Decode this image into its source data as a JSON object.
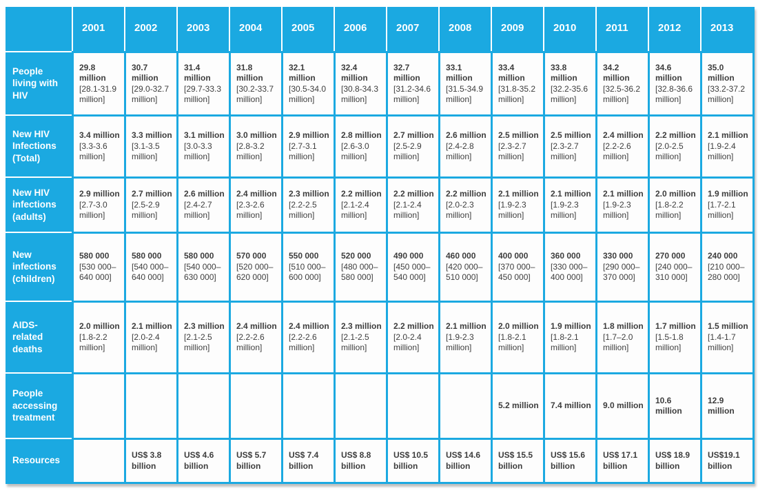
{
  "colors": {
    "accent": "#1ba9e1",
    "header_text": "#ffffff",
    "body_text": "#3d3d3d",
    "cell_bg": "#fdfdfd"
  },
  "chart_data": {
    "type": "table",
    "title": "",
    "columns": [
      "2001",
      "2002",
      "2003",
      "2004",
      "2005",
      "2006",
      "2007",
      "2008",
      "2009",
      "2010",
      "2011",
      "2012",
      "2013"
    ],
    "rows": [
      {
        "label": "People living with HIV",
        "cells": [
          {
            "value": "29.8 million",
            "range": "[28.1-31.9 million]"
          },
          {
            "value": "30.7 million",
            "range": "[29.0-32.7 million]"
          },
          {
            "value": "31.4 million",
            "range": "[29.7-33.3 million]"
          },
          {
            "value": "31.8 million",
            "range": "[30.2-33.7 million]"
          },
          {
            "value": "32.1 million",
            "range": "[30.5-34.0 million]"
          },
          {
            "value": "32.4 million",
            "range": "[30.8-34.3 million]"
          },
          {
            "value": "32.7 million",
            "range": "[31.2-34.6 million]"
          },
          {
            "value": "33.1 million",
            "range": "[31.5-34.9 million]"
          },
          {
            "value": "33.4 million",
            "range": "[31.8-35.2 million]"
          },
          {
            "value": "33.8 million",
            "range": "[32.2-35.6 million]"
          },
          {
            "value": "34.2 million",
            "range": "[32.5-36.2 million]"
          },
          {
            "value": "34.6 million",
            "range": "[32.8-36.6 million]"
          },
          {
            "value": "35.0 million",
            "range": "[33.2-37.2 million]"
          }
        ]
      },
      {
        "label": "New HIV Infections (Total)",
        "cells": [
          {
            "value": "3.4 million",
            "range": "[3.3-3.6 million]"
          },
          {
            "value": "3.3 million",
            "range": "[3.1-3.5 million]"
          },
          {
            "value": "3.1 million",
            "range": "[3.0-3.3 million]"
          },
          {
            "value": "3.0 million",
            "range": "[2.8-3.2 million]"
          },
          {
            "value": "2.9 million",
            "range": "[2.7-3.1 million]"
          },
          {
            "value": "2.8 million",
            "range": "[2.6-3.0 million]"
          },
          {
            "value": "2.7 million",
            "range": "[2.5-2.9 million]"
          },
          {
            "value": "2.6 million",
            "range": "[2.4-2.8 million]"
          },
          {
            "value": "2.5 million",
            "range": "[2.3-2.7 million]"
          },
          {
            "value": "2.5 million",
            "range": "[2.3-2.7 million]"
          },
          {
            "value": "2.4 million",
            "range": "[2.2-2.6 million]"
          },
          {
            "value": "2.2 million",
            "range": "[2.0-2.5 million]"
          },
          {
            "value": "2.1 million",
            "range": "[1.9-2.4 million]"
          }
        ]
      },
      {
        "label": "New HIV infections (adults)",
        "cells": [
          {
            "value": "2.9 million",
            "range": "[2.7-3.0 million]"
          },
          {
            "value": "2.7 million",
            "range": "[2.5-2.9 million]"
          },
          {
            "value": "2.6 million",
            "range": "[2.4-2.7 million]"
          },
          {
            "value": "2.4 million",
            "range": "[2.3-2.6 million]"
          },
          {
            "value": "2.3 million",
            "range": "[2.2-2.5 million]"
          },
          {
            "value": "2.2 million",
            "range": "[2.1-2.4 million]"
          },
          {
            "value": "2.2 million",
            "range": "[2.1-2.4 million]"
          },
          {
            "value": "2.2 million",
            "range": "[2.0-2.3 million]"
          },
          {
            "value": "2.1 million",
            "range": "[1.9-2.3 million]"
          },
          {
            "value": "2.1 million",
            "range": "[1.9-2.3 million]"
          },
          {
            "value": "2.1 million",
            "range": "[1.9-2.3 million]"
          },
          {
            "value": "2.0 million",
            "range": "[1.8-2.2 million]"
          },
          {
            "value": "1.9 million",
            "range": "[1.7-2.1 million]"
          }
        ]
      },
      {
        "label": "New infections (children)",
        "cells": [
          {
            "value": "580 000",
            "range": "[530 000– 640 000]"
          },
          {
            "value": "580 000",
            "range": "[540 000– 640 000]"
          },
          {
            "value": "580 000",
            "range": "[540 000– 630 000]"
          },
          {
            "value": "570 000",
            "range": "[520 000– 620 000]"
          },
          {
            "value": "550 000",
            "range": "[510 000– 600 000]"
          },
          {
            "value": "520 000",
            "range": "[480 000– 580 000]"
          },
          {
            "value": "490 000",
            "range": "[450 000– 540 000]"
          },
          {
            "value": "460 000",
            "range": "[420 000– 510 000]"
          },
          {
            "value": "400 000",
            "range": "[370 000– 450 000]"
          },
          {
            "value": "360 000",
            "range": "[330 000– 400 000]"
          },
          {
            "value": "330 000",
            "range": "[290 000– 370 000]"
          },
          {
            "value": "270 000",
            "range": "[240 000– 310 000]"
          },
          {
            "value": "240 000",
            "range": "[210 000– 280 000]"
          }
        ]
      },
      {
        "label": "AIDS-related deaths",
        "cells": [
          {
            "value": "2.0 million",
            "range": "[1.8-2.2 million]"
          },
          {
            "value": "2.1 million",
            "range": "[2.0-2.4 million]"
          },
          {
            "value": "2.3 million",
            "range": "[2.1-2.5 million]"
          },
          {
            "value": "2.4 million",
            "range": "[2.2-2.6 million]"
          },
          {
            "value": "2.4 million",
            "range": "[2.2-2.6 million]"
          },
          {
            "value": "2.3 million",
            "range": "[2.1-2.5 million]"
          },
          {
            "value": "2.2 million",
            "range": "[2.0-2.4 million]"
          },
          {
            "value": "2.1 million",
            "range": "[1.9-2.3 million]"
          },
          {
            "value": "2.0 million",
            "range": "[1.8-2.1 million]"
          },
          {
            "value": "1.9 million",
            "range": "[1.8-2.1 million]"
          },
          {
            "value": "1.8 million",
            "range": "[1.7–2.0 million]"
          },
          {
            "value": "1.7 million",
            "range": "[1.5-1.8 million]"
          },
          {
            "value": "1.5 million",
            "range": "[1.4-1.7 million]"
          }
        ]
      },
      {
        "label": "People accessing treatment",
        "cells": [
          {
            "value": "",
            "range": ""
          },
          {
            "value": "",
            "range": ""
          },
          {
            "value": "",
            "range": ""
          },
          {
            "value": "",
            "range": ""
          },
          {
            "value": "",
            "range": ""
          },
          {
            "value": "",
            "range": ""
          },
          {
            "value": "",
            "range": ""
          },
          {
            "value": "",
            "range": ""
          },
          {
            "value": "5.2 million",
            "range": ""
          },
          {
            "value": "7.4 million",
            "range": ""
          },
          {
            "value": "9.0 million",
            "range": ""
          },
          {
            "value": "10.6 million",
            "range": ""
          },
          {
            "value": "12.9 million",
            "range": ""
          }
        ]
      },
      {
        "label": "Resources",
        "cells": [
          {
            "value": "",
            "range": ""
          },
          {
            "value": "US$ 3.8 billion",
            "range": ""
          },
          {
            "value": "US$ 4.6 billion",
            "range": ""
          },
          {
            "value": "US$ 5.7 billion",
            "range": ""
          },
          {
            "value": "US$ 7.4 billion",
            "range": ""
          },
          {
            "value": "US$ 8.8 billion",
            "range": ""
          },
          {
            "value": "US$ 10.5 billion",
            "range": ""
          },
          {
            "value": "US$ 14.6 billion",
            "range": ""
          },
          {
            "value": "US$ 15.5 billion",
            "range": ""
          },
          {
            "value": "US$ 15.6 billion",
            "range": ""
          },
          {
            "value": "US$ 17.1 billion",
            "range": ""
          },
          {
            "value": "US$ 18.9 billion",
            "range": ""
          },
          {
            "value": "US$19.1 billion",
            "range": ""
          }
        ]
      }
    ]
  }
}
